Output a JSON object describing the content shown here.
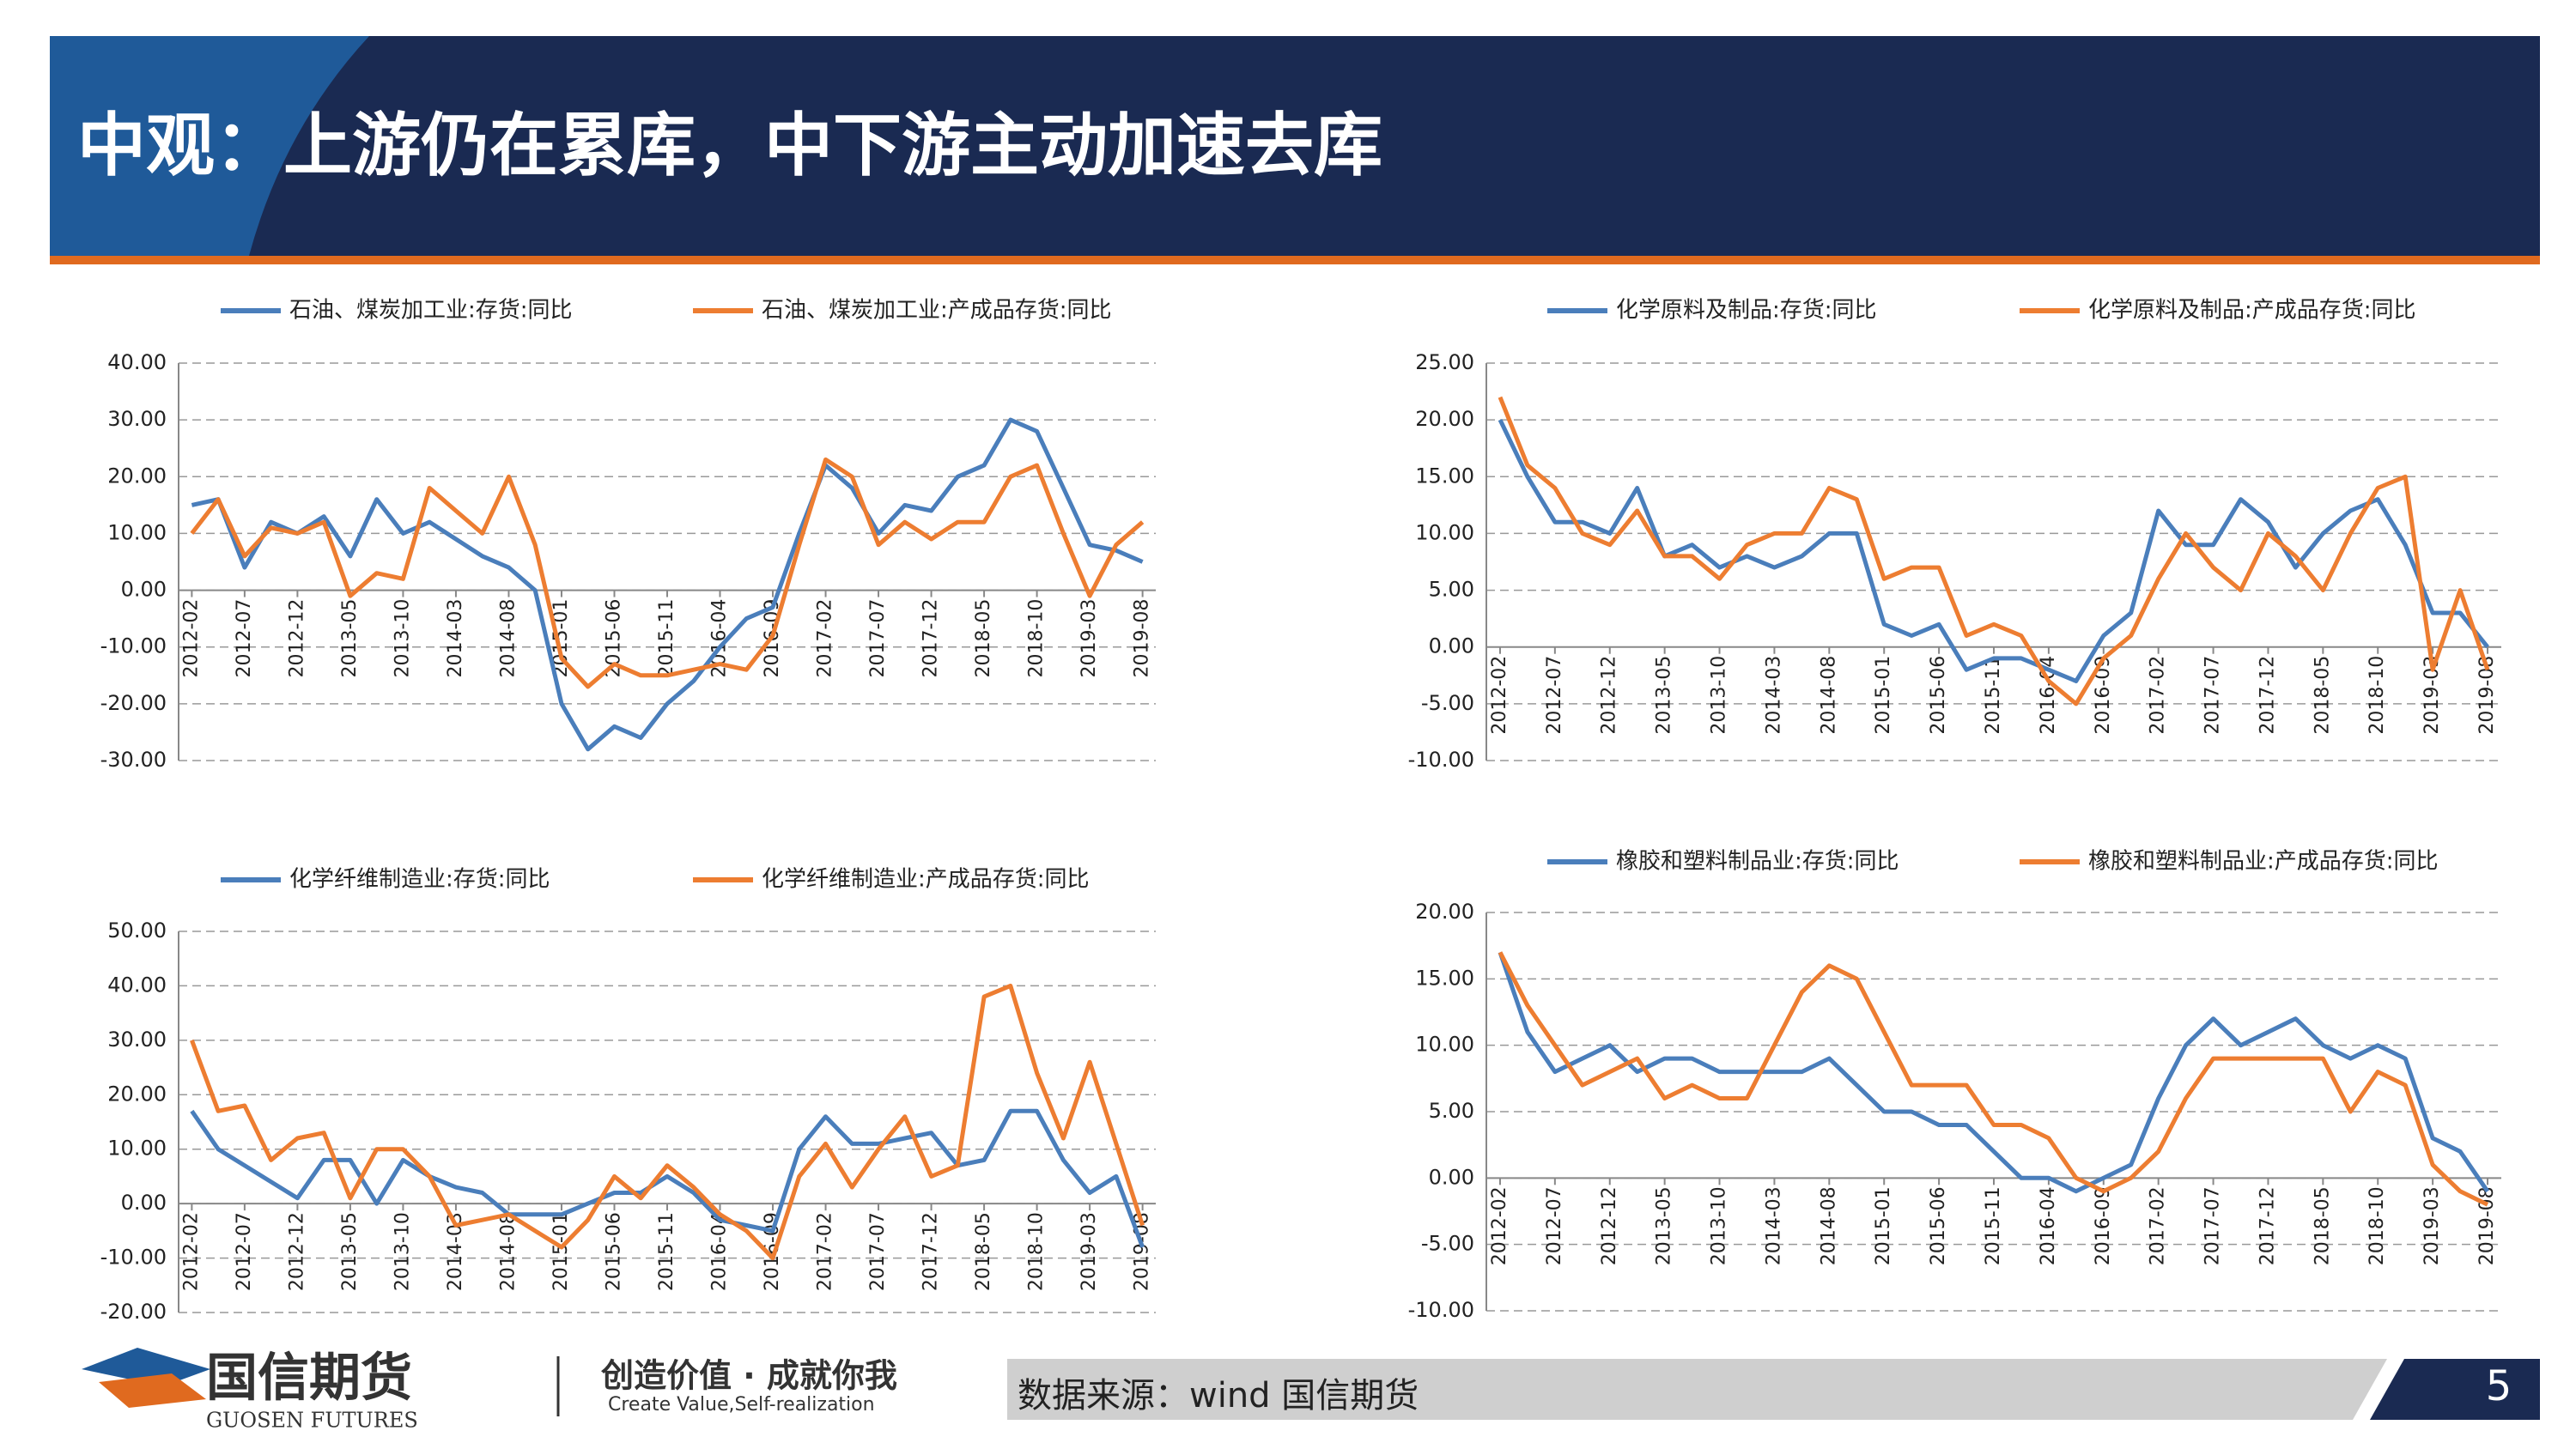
{
  "header": {
    "title": "中观：上游仍在累库，中下游主动加速去库"
  },
  "footer": {
    "logo_cn": "国信期货",
    "logo_en": "GUOSEN FUTURES",
    "slogan_cn": "创造价值 · 成就你我",
    "slogan_en": "Create Value,Self-realization",
    "source": "数据来源：wind  国信期货",
    "page": "5"
  },
  "chart_data": [
    {
      "type": "line",
      "legend": "top",
      "grid": true,
      "categories": [
        "2012-02",
        null,
        "2012-07",
        null,
        "2012-12",
        null,
        "2013-05",
        null,
        "2013-10",
        null,
        "2014-03",
        null,
        "2014-08",
        null,
        "2015-01",
        null,
        "2015-06",
        null,
        "2015-11",
        null,
        "2016-04",
        null,
        "2016-09",
        null,
        "2017-02",
        null,
        "2017-07",
        null,
        "2017-12",
        null,
        "2018-05",
        null,
        "2018-10",
        null,
        "2019-03",
        null,
        "2019-08"
      ],
      "ylim": [
        -30,
        40
      ],
      "yticks": [
        {
          "value": -30,
          "label": "-30.00"
        },
        {
          "value": -20,
          "label": "-20.00"
        },
        {
          "value": -10,
          "label": "-10.00"
        },
        {
          "value": 0,
          "label": "0.00"
        },
        {
          "value": 10,
          "label": "10.00"
        },
        {
          "value": 20,
          "label": "20.00"
        },
        {
          "value": 30,
          "label": "30.00"
        },
        {
          "value": 40,
          "label": "40.00"
        }
      ],
      "series": [
        {
          "name": "石油、煤炭加工业:存货:同比",
          "color": "#4a7ebb",
          "values": [
            15,
            16,
            4,
            12,
            10,
            13,
            6,
            16,
            10,
            12,
            9,
            6,
            4,
            0,
            -20,
            -28,
            -24,
            -26,
            -20,
            -16,
            -10,
            -5,
            -3,
            10,
            22,
            18,
            10,
            15,
            14,
            20,
            22,
            30,
            28,
            18,
            8,
            7,
            5
          ]
        },
        {
          "name": "石油、煤炭加工业:产成品存货:同比",
          "color": "#ed7d31",
          "values": [
            10,
            16,
            6,
            11,
            10,
            12,
            -1,
            3,
            2,
            18,
            14,
            10,
            20,
            8,
            -12,
            -17,
            -13,
            -15,
            -15,
            -14,
            -13,
            -14,
            -8,
            8,
            23,
            20,
            8,
            12,
            9,
            12,
            12,
            20,
            22,
            10,
            -1,
            8,
            12
          ]
        }
      ]
    },
    {
      "type": "line",
      "legend": "top",
      "grid": true,
      "categories": [
        "2012-02",
        null,
        "2012-07",
        null,
        "2012-12",
        null,
        "2013-05",
        null,
        "2013-10",
        null,
        "2014-03",
        null,
        "2014-08",
        null,
        "2015-01",
        null,
        "2015-06",
        null,
        "2015-11",
        null,
        "2016-04",
        null,
        "2016-09",
        null,
        "2017-02",
        null,
        "2017-07",
        null,
        "2017-12",
        null,
        "2018-05",
        null,
        "2018-10",
        null,
        "2019-03",
        null,
        "2019-08"
      ],
      "ylim": [
        -10,
        25
      ],
      "yticks": [
        {
          "value": -10,
          "label": "-10.00"
        },
        {
          "value": -5,
          "label": "-5.00"
        },
        {
          "value": 0,
          "label": "0.00"
        },
        {
          "value": 5,
          "label": "5.00"
        },
        {
          "value": 10,
          "label": "10.00"
        },
        {
          "value": 15,
          "label": "15.00"
        },
        {
          "value": 20,
          "label": "20.00"
        },
        {
          "value": 25,
          "label": "25.00"
        }
      ],
      "series": [
        {
          "name": "化学原料及制品:存货:同比",
          "color": "#4a7ebb",
          "values": [
            20,
            15,
            11,
            11,
            10,
            14,
            8,
            9,
            7,
            8,
            7,
            8,
            10,
            10,
            2,
            1,
            2,
            -2,
            -1,
            -1,
            -2,
            -3,
            1,
            3,
            12,
            9,
            9,
            13,
            11,
            7,
            10,
            12,
            13,
            9,
            3,
            3,
            0
          ]
        },
        {
          "name": "化学原料及制品:产成品存货:同比",
          "color": "#ed7d31",
          "values": [
            22,
            16,
            14,
            10,
            9,
            12,
            8,
            8,
            6,
            9,
            10,
            10,
            14,
            13,
            6,
            7,
            7,
            1,
            2,
            1,
            -3,
            -5,
            -1,
            1,
            6,
            10,
            7,
            5,
            10,
            8,
            5,
            10,
            14,
            15,
            -2,
            5,
            -2
          ]
        }
      ]
    },
    {
      "type": "line",
      "legend": "top",
      "grid": true,
      "categories": [
        "2012-02",
        null,
        "2012-07",
        null,
        "2012-12",
        null,
        "2013-05",
        null,
        "2013-10",
        null,
        "2014-03",
        null,
        "2014-08",
        null,
        "2015-01",
        null,
        "2015-06",
        null,
        "2015-11",
        null,
        "2016-04",
        null,
        "2016-09",
        null,
        "2017-02",
        null,
        "2017-07",
        null,
        "2017-12",
        null,
        "2018-05",
        null,
        "2018-10",
        null,
        "2019-03",
        null,
        "2019-08"
      ],
      "ylim": [
        -20,
        50
      ],
      "yticks": [
        {
          "value": -20,
          "label": "-20.00"
        },
        {
          "value": -10,
          "label": "-10.00"
        },
        {
          "value": 0,
          "label": "0.00"
        },
        {
          "value": 10,
          "label": "10.00"
        },
        {
          "value": 20,
          "label": "20.00"
        },
        {
          "value": 30,
          "label": "30.00"
        },
        {
          "value": 40,
          "label": "40.00"
        },
        {
          "value": 50,
          "label": "50.00"
        }
      ],
      "series": [
        {
          "name": "化学纤维制造业:存货:同比",
          "color": "#4a7ebb",
          "values": [
            17,
            10,
            7,
            4,
            1,
            8,
            8,
            0,
            8,
            5,
            3,
            2,
            -2,
            -2,
            -2,
            0,
            2,
            2,
            5,
            2,
            -3,
            -4,
            -5,
            10,
            16,
            11,
            11,
            12,
            13,
            7,
            8,
            17,
            17,
            8,
            2,
            5,
            -8
          ]
        },
        {
          "name": "化学纤维制造业:产成品存货:同比",
          "color": "#ed7d31",
          "values": [
            30,
            17,
            18,
            8,
            12,
            13,
            1,
            10,
            10,
            5,
            -4,
            -3,
            -2,
            -5,
            -8,
            -3,
            5,
            1,
            7,
            3,
            -2,
            -5,
            -10,
            5,
            11,
            3,
            10,
            16,
            5,
            7,
            38,
            40,
            24,
            12,
            26,
            11,
            -4
          ]
        }
      ]
    },
    {
      "type": "line",
      "legend": "top",
      "grid": true,
      "categories": [
        "2012-02",
        null,
        "2012-07",
        null,
        "2012-12",
        null,
        "2013-05",
        null,
        "2013-10",
        null,
        "2014-03",
        null,
        "2014-08",
        null,
        "2015-01",
        null,
        "2015-06",
        null,
        "2015-11",
        null,
        "2016-04",
        null,
        "2016-09",
        null,
        "2017-02",
        null,
        "2017-07",
        null,
        "2017-12",
        null,
        "2018-05",
        null,
        "2018-10",
        null,
        "2019-03",
        null,
        "2019-08"
      ],
      "ylim": [
        -10,
        20
      ],
      "yticks": [
        {
          "value": -10,
          "label": "-10.00"
        },
        {
          "value": -5,
          "label": "-5.00"
        },
        {
          "value": 0,
          "label": "0.00"
        },
        {
          "value": 5,
          "label": "5.00"
        },
        {
          "value": 10,
          "label": "10.00"
        },
        {
          "value": 15,
          "label": "15.00"
        },
        {
          "value": 20,
          "label": "20.00"
        }
      ],
      "series": [
        {
          "name": "橡胶和塑料制品业:存货:同比",
          "color": "#4a7ebb",
          "values": [
            17,
            11,
            8,
            9,
            10,
            8,
            9,
            9,
            8,
            8,
            8,
            8,
            9,
            7,
            5,
            5,
            4,
            4,
            2,
            0,
            0,
            -1,
            0,
            1,
            6,
            10,
            12,
            10,
            11,
            12,
            10,
            9,
            10,
            9,
            3,
            2,
            -1
          ]
        },
        {
          "name": "橡胶和塑料制品业:产成品存货:同比",
          "color": "#ed7d31",
          "values": [
            17,
            13,
            10,
            7,
            8,
            9,
            6,
            7,
            6,
            6,
            10,
            14,
            16,
            15,
            11,
            7,
            7,
            7,
            4,
            4,
            3,
            0,
            -1,
            0,
            2,
            6,
            9,
            9,
            9,
            9,
            9,
            5,
            8,
            7,
            1,
            -1,
            -2
          ]
        }
      ]
    }
  ]
}
